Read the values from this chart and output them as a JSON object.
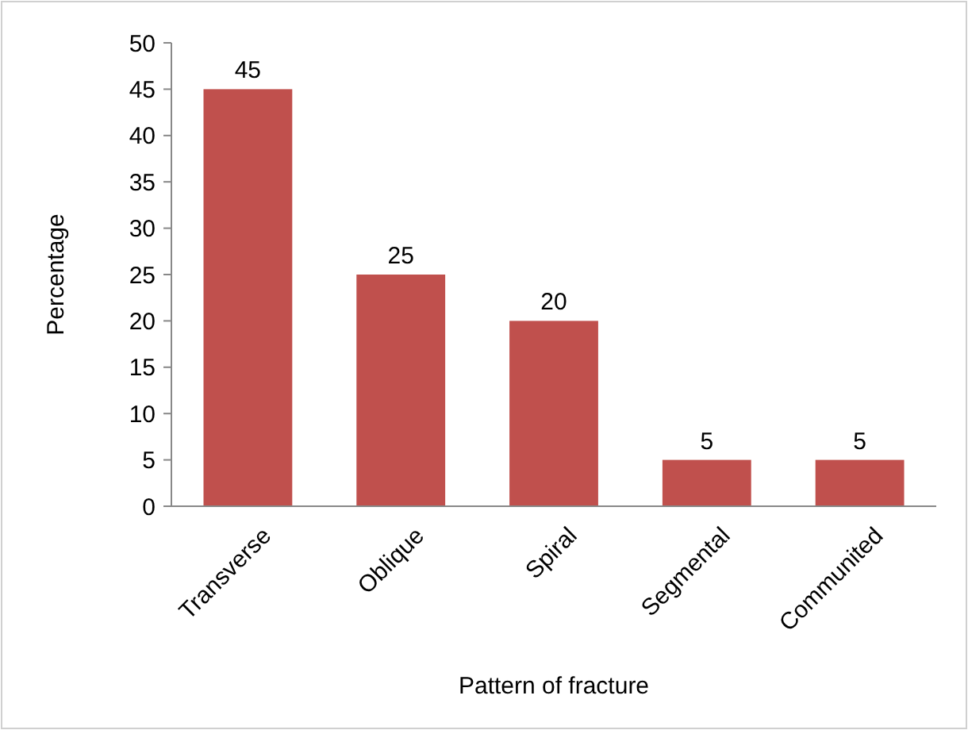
{
  "chart_data": {
    "type": "bar",
    "xlabel": "Pattern of fracture",
    "ylabel": "Percentage",
    "categories": [
      "Transverse",
      "Oblique",
      "Spiral",
      "Segmental",
      "Communited"
    ],
    "values": [
      45,
      25,
      20,
      5,
      5
    ],
    "color": "#c0504d",
    "ylim": [
      0,
      50
    ],
    "yticks": [
      0,
      5,
      10,
      15,
      20,
      25,
      30,
      35,
      40,
      45,
      50
    ],
    "grid": false,
    "data_labels": true
  }
}
